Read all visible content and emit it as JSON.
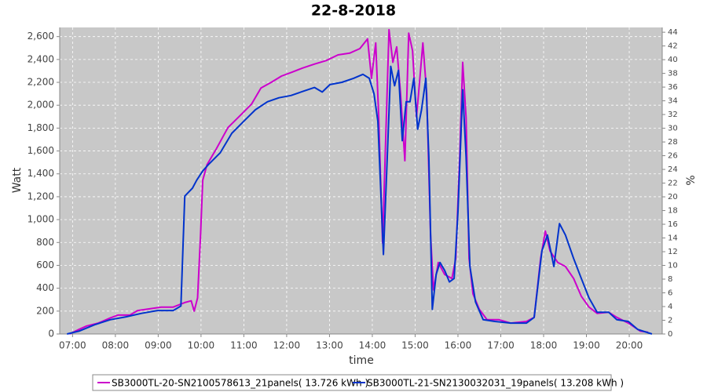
{
  "chart_data": {
    "type": "line",
    "title": "22-8-2018",
    "x_label": "time",
    "y_label": "Watt",
    "y2_label": "%",
    "xlim": [
      6.7,
      20.77
    ],
    "xticks": [
      {
        "value": 7,
        "label": "07:00"
      },
      {
        "value": 8,
        "label": "08:00"
      },
      {
        "value": 9,
        "label": "09:00"
      },
      {
        "value": 10,
        "label": "10:00"
      },
      {
        "value": 11,
        "label": "11:00"
      },
      {
        "value": 12,
        "label": "12:00"
      },
      {
        "value": 13,
        "label": "13:00"
      },
      {
        "value": 14,
        "label": "14:00"
      },
      {
        "value": 15,
        "label": "15:00"
      },
      {
        "value": 16,
        "label": "16:00"
      },
      {
        "value": 17,
        "label": "17:00"
      },
      {
        "value": 18,
        "label": "18:00"
      },
      {
        "value": 19,
        "label": "19:00"
      },
      {
        "value": 20,
        "label": "20:00"
      }
    ],
    "ylim": [
      0,
      2680
    ],
    "yticks": [
      0,
      200,
      400,
      600,
      800,
      {
        "value": 1000,
        "label": "1,000"
      },
      {
        "value": 1200,
        "label": "1,200"
      },
      {
        "value": 1400,
        "label": "1,400"
      },
      {
        "value": 1600,
        "label": "1,600"
      },
      {
        "value": 1800,
        "label": "1,800"
      },
      {
        "value": 2000,
        "label": "2,000"
      },
      {
        "value": 2200,
        "label": "2,200"
      },
      {
        "value": 2400,
        "label": "2,400"
      },
      {
        "value": 2600,
        "label": "2,600"
      }
    ],
    "y2lim": [
      0,
      44.7
    ],
    "y2ticks": [
      0,
      2,
      4,
      6,
      8,
      10,
      12,
      14,
      16,
      18,
      20,
      22,
      24,
      26,
      28,
      30,
      32,
      34,
      36,
      38,
      40,
      42,
      44
    ],
    "grid": true,
    "legend": "bottom",
    "series": [
      {
        "name": "SB3000TL-20-SN2100578613_21panels( 13.726 kWh )",
        "color": "#cc00cc",
        "x": [
          6.93,
          7.15,
          7.33,
          7.6,
          7.88,
          8.06,
          8.34,
          8.52,
          8.8,
          9.07,
          9.35,
          9.62,
          9.77,
          9.84,
          9.92,
          9.99,
          10.04,
          10.14,
          10.36,
          10.63,
          10.9,
          11.18,
          11.4,
          11.64,
          11.88,
          12.13,
          12.37,
          12.65,
          12.92,
          13.2,
          13.47,
          13.71,
          13.89,
          13.98,
          14.08,
          14.15,
          14.24,
          14.3,
          14.39,
          14.48,
          14.57,
          14.66,
          14.76,
          14.85,
          14.94,
          15.03,
          15.08,
          15.18,
          15.27,
          15.36,
          15.43,
          15.54,
          15.69,
          15.86,
          15.95,
          16.04,
          16.11,
          16.19,
          16.26,
          16.35,
          16.5,
          16.68,
          16.96,
          17.23,
          17.6,
          17.78,
          17.93,
          18.04,
          18.15,
          18.33,
          18.51,
          18.7,
          18.88,
          19.06,
          19.25,
          19.52,
          19.71,
          19.98,
          20.26,
          20.44
        ],
        "values": [
          0,
          40,
          70,
          95,
          140,
          165,
          165,
          205,
          220,
          235,
          235,
          275,
          290,
          200,
          315,
          865,
          1345,
          1480,
          1620,
          1805,
          1905,
          2010,
          2150,
          2200,
          2255,
          2290,
          2325,
          2360,
          2390,
          2440,
          2455,
          2495,
          2580,
          2235,
          2545,
          1895,
          795,
          1550,
          2660,
          2375,
          2510,
          2100,
          1515,
          2630,
          2475,
          1895,
          2100,
          2545,
          2100,
          865,
          385,
          625,
          520,
          485,
          660,
          1550,
          2375,
          1895,
          660,
          350,
          215,
          125,
          125,
          95,
          110,
          145,
          660,
          900,
          725,
          625,
          590,
          485,
          330,
          235,
          180,
          190,
          145,
          95,
          25,
          15
        ]
      },
      {
        "name": "SB3000TL-21-SN2130032031_19panels( 13.208 kWh )",
        "color": "#0033cc",
        "x": [
          6.87,
          7.15,
          7.51,
          7.88,
          8.25,
          8.61,
          8.98,
          9.35,
          9.53,
          9.62,
          9.71,
          9.8,
          9.9,
          10.04,
          10.17,
          10.45,
          10.72,
          11.0,
          11.27,
          11.55,
          11.82,
          12.1,
          12.37,
          12.65,
          12.83,
          13.01,
          13.29,
          13.56,
          13.78,
          13.93,
          14.04,
          14.13,
          14.26,
          14.35,
          14.43,
          14.52,
          14.61,
          14.7,
          14.79,
          14.88,
          14.97,
          15.06,
          15.15,
          15.25,
          15.32,
          15.4,
          15.49,
          15.58,
          15.69,
          15.8,
          15.91,
          16.0,
          16.11,
          16.19,
          16.28,
          16.41,
          16.59,
          16.86,
          17.23,
          17.6,
          17.78,
          17.96,
          18.09,
          18.24,
          18.37,
          18.51,
          18.7,
          18.88,
          19.06,
          19.25,
          19.52,
          19.71,
          19.98,
          20.2,
          20.53
        ],
        "values": [
          0,
          25,
          80,
          125,
          150,
          180,
          205,
          205,
          245,
          1205,
          1240,
          1275,
          1345,
          1425,
          1480,
          1585,
          1755,
          1860,
          1960,
          2030,
          2065,
          2085,
          2120,
          2155,
          2115,
          2180,
          2200,
          2235,
          2270,
          2235,
          2100,
          1860,
          695,
          1550,
          2340,
          2170,
          2305,
          1690,
          2030,
          2030,
          2235,
          1790,
          1960,
          2235,
          1550,
          215,
          520,
          625,
          555,
          455,
          485,
          1070,
          2135,
          1550,
          590,
          280,
          125,
          110,
          95,
          95,
          145,
          725,
          865,
          590,
          965,
          865,
          660,
          485,
          315,
          190,
          190,
          125,
          110,
          40,
          0
        ]
      }
    ]
  }
}
